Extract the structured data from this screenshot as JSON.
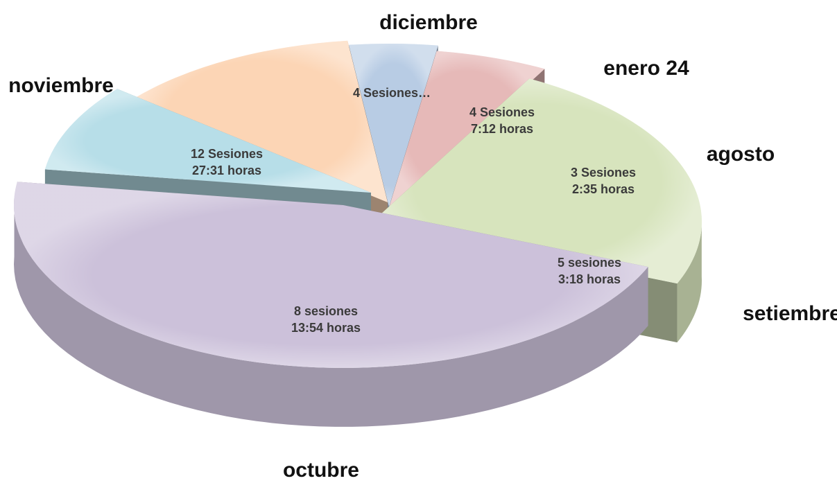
{
  "chart_data": {
    "type": "pie",
    "style": "3d-exploded",
    "slices": [
      {
        "category": "agosto",
        "sessions": 3,
        "hours": "2:35",
        "value": 2.58,
        "label_lines": [
          "3 Sesiones",
          "2:35 horas"
        ],
        "color": "#b8cce4"
      },
      {
        "category": "setiembre",
        "sessions": 5,
        "hours": "3:18",
        "value": 3.3,
        "label_lines": [
          "5 sesiones",
          "3:18 horas"
        ],
        "color": "#e6b9b8"
      },
      {
        "category": "octubre",
        "sessions": 8,
        "hours": "13:54",
        "value": 13.9,
        "label_lines": [
          "8 sesiones",
          "13:54 horas"
        ],
        "color": "#d7e4bd"
      },
      {
        "category": "noviembre",
        "sessions": 12,
        "hours": "27:31",
        "value": 27.52,
        "label_lines": [
          "12 Sesiones",
          "27:31 horas"
        ],
        "color": "#ccc1da"
      },
      {
        "category": "diciembre",
        "sessions": 4,
        "hours": null,
        "value": 5.2,
        "label_lines": [
          "4 Sesiones…"
        ],
        "color": "#b7dee8"
      },
      {
        "category": "enero 24",
        "sessions": 4,
        "hours": "7:12",
        "value": 7.2,
        "label_lines": [
          "4 Sesiones",
          "7:12 horas"
        ],
        "color": "#fcd5b5"
      }
    ]
  }
}
